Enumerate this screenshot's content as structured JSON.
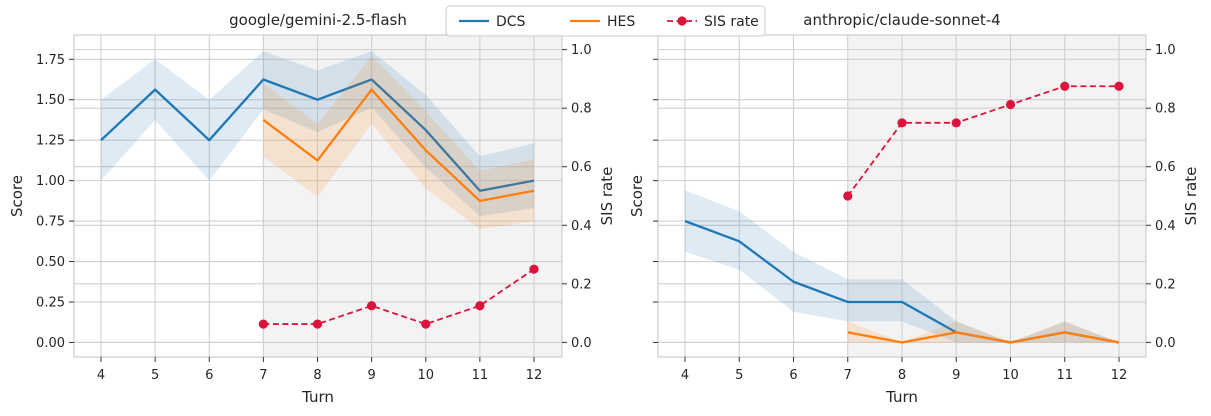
{
  "legend": {
    "items": [
      {
        "label": "DCS",
        "color": "#1f77b4",
        "style": "line"
      },
      {
        "label": "HES",
        "color": "#ff7f0e",
        "style": "line"
      },
      {
        "label": "SIS rate",
        "color": "#dc143c",
        "style": "dashed-marker"
      }
    ]
  },
  "chart_data": [
    {
      "type": "line",
      "title": "google/gemini-2.5-flash",
      "xlabel": "Turn",
      "ylabel": "Score",
      "y2label": "SIS rate",
      "x_ticks": [
        "4",
        "5",
        "6",
        "7",
        "8",
        "9",
        "10",
        "11",
        "12"
      ],
      "ylim": [
        -0.09,
        1.9
      ],
      "y_ticks": [
        "0.00",
        "0.25",
        "0.50",
        "0.75",
        "1.00",
        "1.25",
        "1.50",
        "1.75"
      ],
      "y_tick_values": [
        0,
        0.25,
        0.5,
        0.75,
        1.0,
        1.25,
        1.5,
        1.75
      ],
      "y2lim": [
        -0.05,
        1.05
      ],
      "y2_ticks": [
        "0.0",
        "0.2",
        "0.4",
        "0.6",
        "0.8",
        "1.0"
      ],
      "y2_tick_values": [
        0,
        0.2,
        0.4,
        0.6,
        0.8,
        1.0
      ],
      "shaded_from_turn": 7,
      "series": [
        {
          "name": "DCS",
          "color": "#1f77b4",
          "x": [
            4,
            5,
            6,
            7,
            8,
            9,
            10,
            11,
            12
          ],
          "values": [
            1.25,
            1.5625,
            1.25,
            1.625,
            1.5,
            1.625,
            1.3125,
            0.9375,
            1.0
          ],
          "lower": [
            1.0,
            1.375,
            1.0,
            1.44,
            1.3,
            1.45,
            1.08,
            0.78,
            0.83
          ],
          "upper": [
            1.5,
            1.75,
            1.5,
            1.8,
            1.68,
            1.8,
            1.53,
            1.15,
            1.23
          ]
        },
        {
          "name": "HES",
          "color": "#ff7f0e",
          "x": [
            7,
            8,
            9,
            10,
            11,
            12
          ],
          "values": [
            1.375,
            1.125,
            1.5625,
            1.1875,
            0.875,
            0.9375
          ],
          "lower": [
            1.15,
            0.9,
            1.35,
            0.95,
            0.7,
            0.75
          ],
          "upper": [
            1.6,
            1.35,
            1.77,
            1.43,
            1.06,
            1.13
          ]
        },
        {
          "name": "SIS rate",
          "color": "#dc143c",
          "axis": "right",
          "x": [
            7,
            8,
            9,
            10,
            11,
            12
          ],
          "values": [
            0.0625,
            0.0625,
            0.125,
            0.0625,
            0.125,
            0.25
          ]
        }
      ]
    },
    {
      "type": "line",
      "title": "anthropic/claude-sonnet-4",
      "xlabel": "Turn",
      "ylabel": "Score",
      "y2label": "SIS rate",
      "x_ticks": [
        "4",
        "5",
        "6",
        "7",
        "8",
        "9",
        "10",
        "11",
        "12"
      ],
      "ylim": [
        -0.09,
        1.9
      ],
      "y_ticks": [
        "",
        "",
        "",
        "",
        "",
        "",
        "",
        ""
      ],
      "y_tick_values": [
        0,
        0.25,
        0.5,
        0.75,
        1.0,
        1.25,
        1.5,
        1.75
      ],
      "y2lim": [
        -0.05,
        1.05
      ],
      "y2_ticks": [
        "0.0",
        "0.2",
        "0.4",
        "0.6",
        "0.8",
        "1.0"
      ],
      "y2_tick_values": [
        0,
        0.2,
        0.4,
        0.6,
        0.8,
        1.0
      ],
      "shaded_from_turn": 7,
      "series": [
        {
          "name": "DCS",
          "color": "#1f77b4",
          "x": [
            4,
            5,
            6,
            7,
            8,
            9,
            10,
            11,
            12
          ],
          "values": [
            0.75,
            0.625,
            0.375,
            0.25,
            0.25,
            0.0625,
            0.0,
            0.0625,
            0.0
          ],
          "lower": [
            0.56,
            0.45,
            0.19,
            0.13,
            0.13,
            0.0,
            0.0,
            0.0,
            0.0
          ],
          "upper": [
            0.94,
            0.81,
            0.56,
            0.39,
            0.39,
            0.13,
            0.0,
            0.13,
            0.0
          ]
        },
        {
          "name": "HES",
          "color": "#ff7f0e",
          "x": [
            7,
            8,
            9,
            10,
            11,
            12
          ],
          "values": [
            0.0625,
            0.0,
            0.0625,
            0.0,
            0.0625,
            0.0
          ],
          "lower": [
            0.0,
            0.0,
            0.0,
            0.0,
            0.0,
            0.0
          ],
          "upper": [
            0.13,
            0.0,
            0.13,
            0.0,
            0.13,
            0.0
          ]
        },
        {
          "name": "SIS rate",
          "color": "#dc143c",
          "axis": "right",
          "x": [
            7,
            8,
            9,
            10,
            11,
            12
          ],
          "values": [
            0.5,
            0.75,
            0.75,
            0.8125,
            0.875,
            0.875
          ]
        }
      ]
    }
  ]
}
